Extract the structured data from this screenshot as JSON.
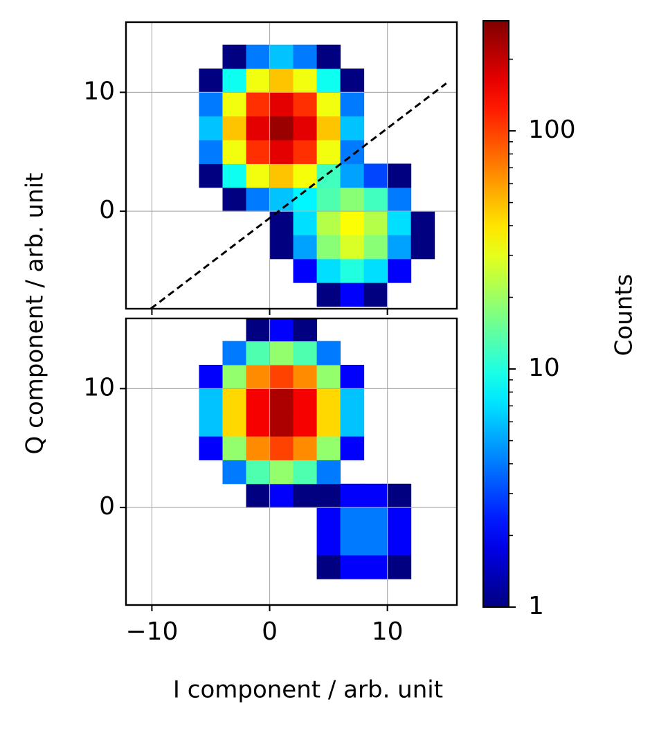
{
  "chart_data": [
    {
      "type": "heatmap",
      "ylabel": "Q component / arb. unit",
      "xlim": [
        -12.2,
        15.9
      ],
      "ylim": [
        -8.2,
        15.9
      ],
      "xticks": [
        {
          "value": -10,
          "label": "−10"
        },
        0,
        10
      ],
      "yticks": [
        0,
        10
      ],
      "grid": true,
      "xbins": [
        -12,
        -10,
        -8,
        -6,
        -4,
        -2,
        0,
        2,
        4,
        6,
        8,
        10,
        12,
        14,
        16
      ],
      "ybins": [
        -8,
        -6,
        -4,
        -2,
        0,
        2,
        4,
        6,
        8,
        10,
        12,
        14,
        16
      ],
      "z": [
        [
          null,
          null,
          null,
          null,
          null,
          null,
          null,
          null,
          1,
          2,
          1,
          null,
          null,
          null
        ],
        [
          null,
          null,
          null,
          null,
          null,
          null,
          null,
          2,
          7,
          10,
          7,
          2,
          null,
          null
        ],
        [
          null,
          null,
          null,
          null,
          null,
          null,
          1,
          5,
          18,
          28,
          18,
          5,
          1,
          null
        ],
        [
          null,
          null,
          null,
          null,
          null,
          null,
          1,
          7,
          23,
          34,
          23,
          7,
          1,
          null
        ],
        [
          null,
          null,
          null,
          null,
          1,
          4,
          6,
          8,
          13,
          18,
          12,
          4,
          null,
          null
        ],
        [
          null,
          null,
          null,
          1,
          9,
          32,
          48,
          33,
          12,
          5,
          3,
          1,
          null,
          null
        ],
        [
          null,
          null,
          null,
          4,
          32,
          110,
          166,
          110,
          32,
          4,
          null,
          null,
          null,
          null
        ],
        [
          null,
          null,
          null,
          6,
          48,
          166,
          250,
          166,
          48,
          6,
          null,
          null,
          null,
          null
        ],
        [
          null,
          null,
          null,
          4,
          32,
          110,
          166,
          110,
          32,
          4,
          null,
          null,
          null,
          null
        ],
        [
          null,
          null,
          null,
          1,
          9,
          32,
          48,
          32,
          9,
          1,
          null,
          null,
          null,
          null
        ],
        [
          null,
          null,
          null,
          null,
          1,
          4,
          6,
          4,
          1,
          null,
          null,
          null,
          null,
          null
        ],
        [
          null,
          null,
          null,
          null,
          null,
          null,
          null,
          null,
          null,
          null,
          null,
          null,
          null,
          null
        ]
      ],
      "line": {
        "x": [
          -10.1,
          15
        ],
        "y": [
          -8.2,
          10.75
        ],
        "color": "#000000",
        "dashed": true
      },
      "colorbar": {
        "label": "Counts",
        "scale": "log",
        "lim": [
          1,
          290
        ],
        "ticks": [
          1,
          10,
          100
        ],
        "colormap": "jet"
      }
    },
    {
      "type": "heatmap",
      "xlabel": "I component / arb. unit",
      "xlim": [
        -12.2,
        15.9
      ],
      "ylim": [
        -8.2,
        15.9
      ],
      "xticks": [
        {
          "value": -10,
          "label": "−10"
        },
        0,
        10
      ],
      "yticks": [
        0,
        10
      ],
      "grid": true,
      "xbins": [
        -12,
        -10,
        -8,
        -6,
        -4,
        -2,
        0,
        2,
        4,
        6,
        8,
        10,
        12,
        14,
        16
      ],
      "ybins": [
        -8,
        -6,
        -4,
        -2,
        0,
        2,
        4,
        6,
        8,
        10,
        12,
        14,
        16
      ],
      "z": [
        [
          null,
          null,
          null,
          null,
          null,
          null,
          null,
          null,
          null,
          null,
          null,
          null,
          null,
          null
        ],
        [
          null,
          null,
          null,
          null,
          null,
          null,
          null,
          null,
          1,
          2,
          2,
          1,
          null,
          null
        ],
        [
          null,
          null,
          null,
          null,
          null,
          null,
          null,
          null,
          2,
          4,
          4,
          2,
          null,
          null
        ],
        [
          null,
          null,
          null,
          null,
          null,
          null,
          null,
          null,
          2,
          4,
          4,
          2,
          null,
          null
        ],
        [
          null,
          null,
          null,
          null,
          null,
          1,
          2,
          1,
          1,
          2,
          2,
          1,
          null,
          null
        ],
        [
          null,
          null,
          null,
          null,
          4,
          13,
          19,
          13,
          4,
          null,
          null,
          null,
          null,
          null
        ],
        [
          null,
          null,
          null,
          2,
          19,
          66,
          99,
          66,
          19,
          2,
          null,
          null,
          null,
          null
        ],
        [
          null,
          null,
          null,
          6,
          43,
          149,
          226,
          149,
          43,
          6,
          null,
          null,
          null,
          null
        ],
        [
          null,
          null,
          null,
          6,
          43,
          149,
          226,
          149,
          43,
          6,
          null,
          null,
          null,
          null
        ],
        [
          null,
          null,
          null,
          2,
          19,
          66,
          99,
          66,
          19,
          2,
          null,
          null,
          null,
          null
        ],
        [
          null,
          null,
          null,
          null,
          4,
          13,
          19,
          13,
          4,
          null,
          null,
          null,
          null,
          null
        ],
        [
          null,
          null,
          null,
          null,
          null,
          1,
          2,
          1,
          null,
          null,
          null,
          null,
          null,
          null
        ]
      ]
    }
  ]
}
